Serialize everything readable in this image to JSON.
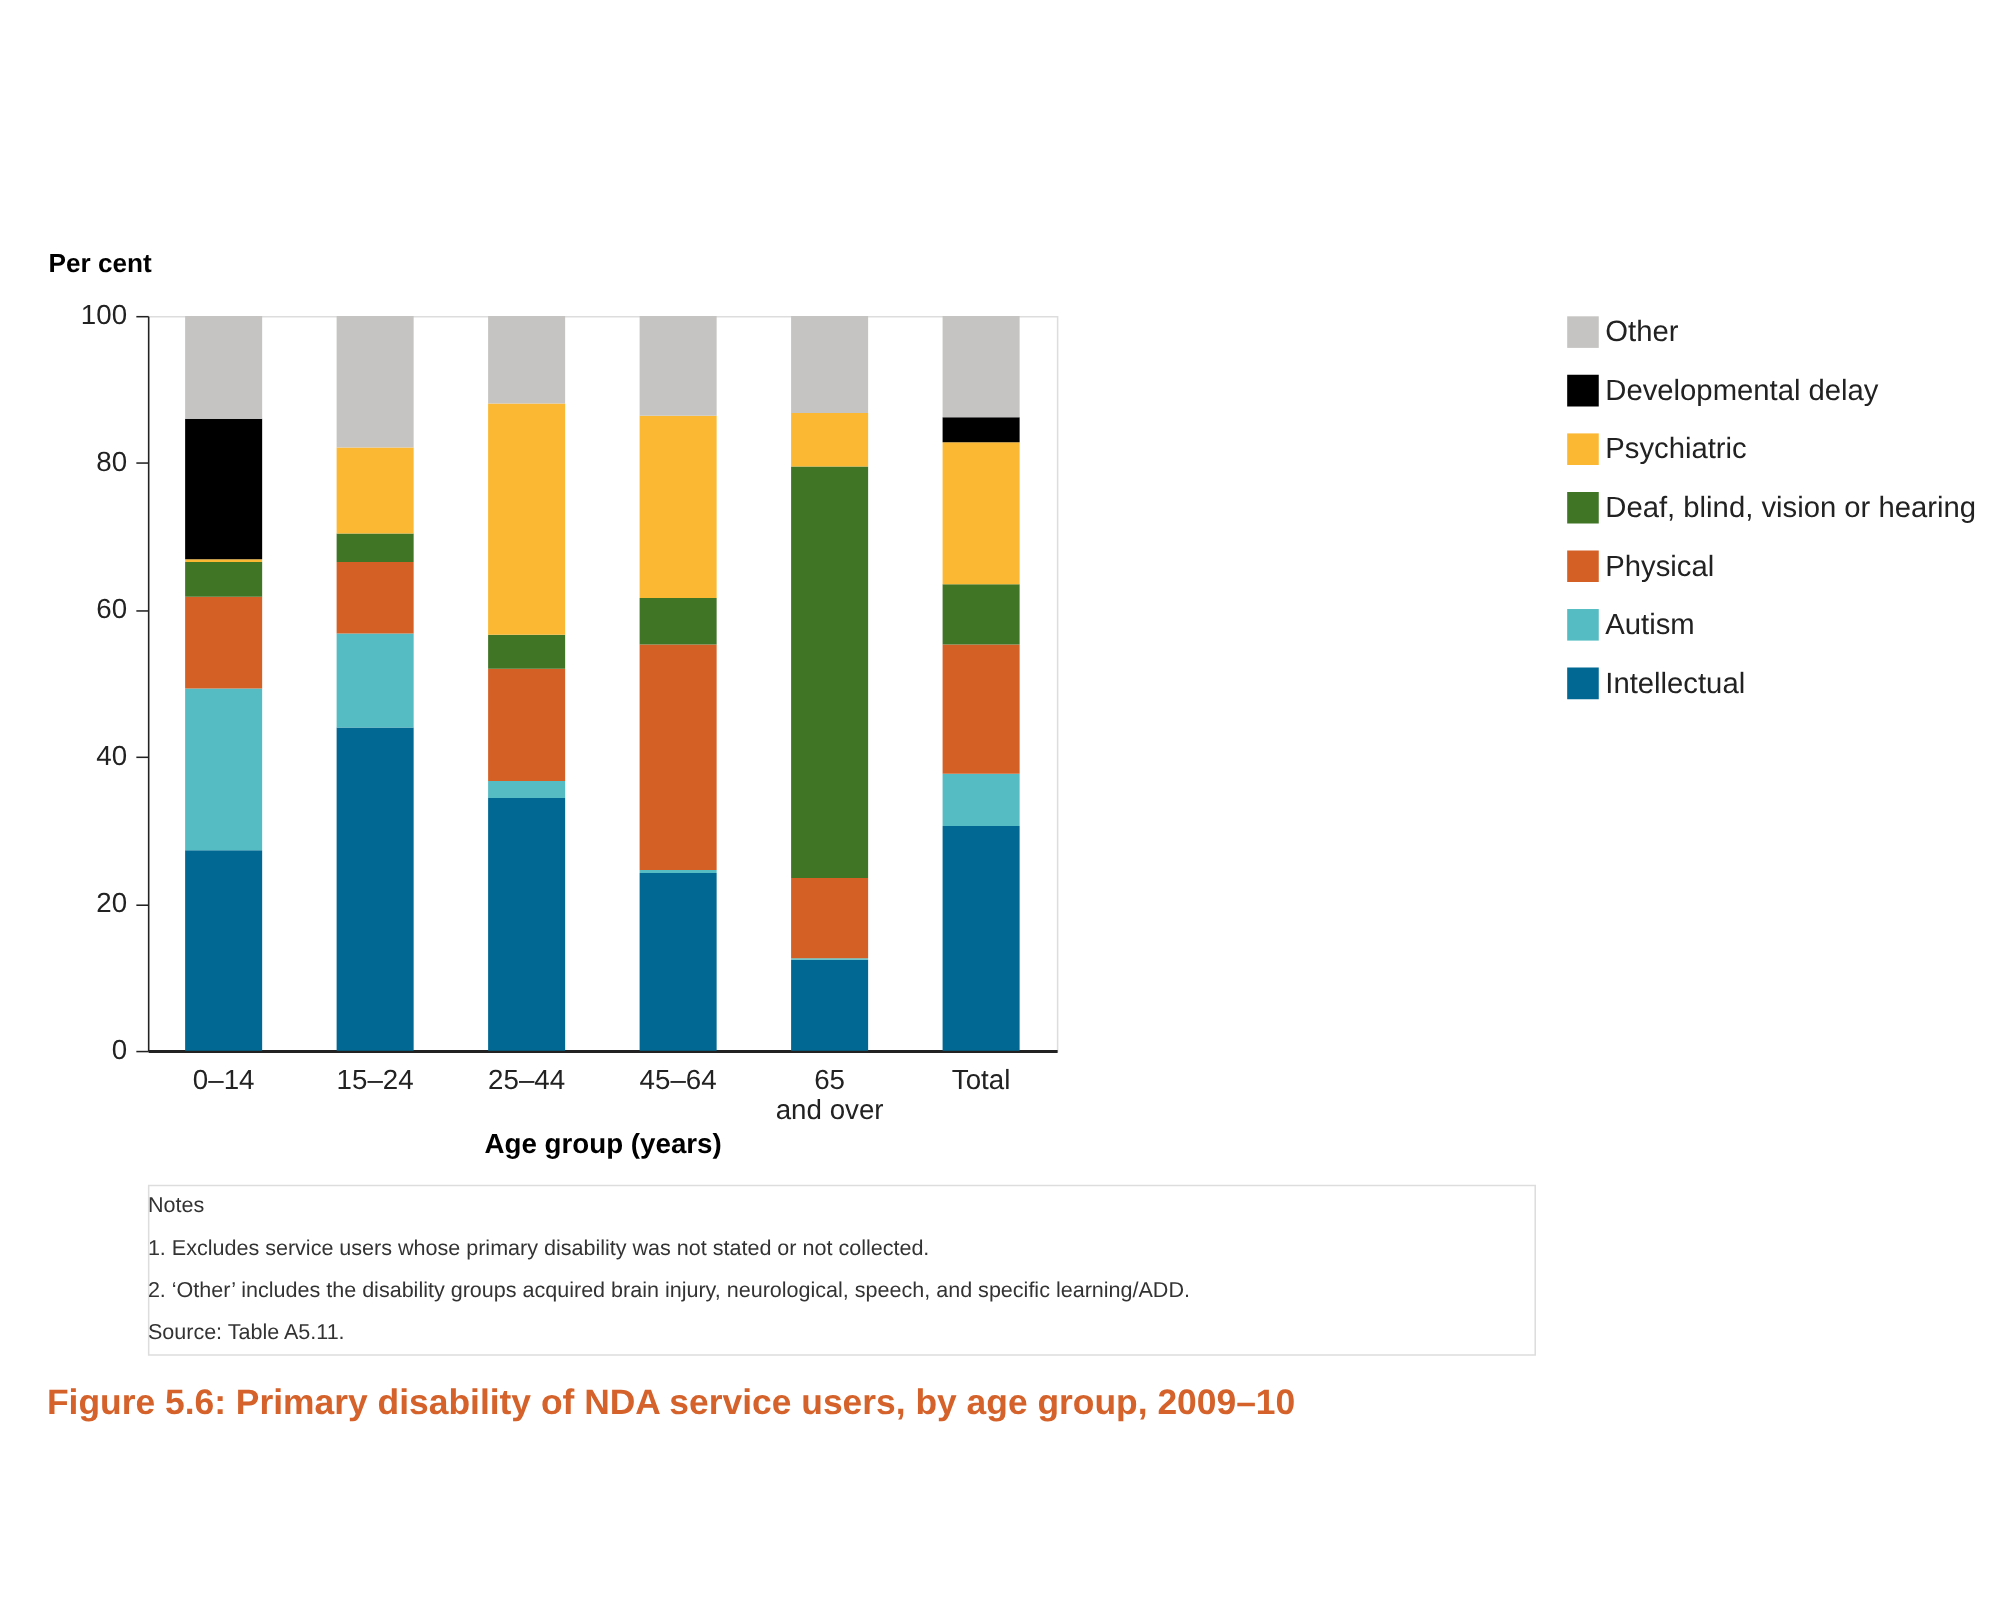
{
  "chart_data": {
    "type": "bar",
    "stacked": true,
    "title": "Figure 5.6: Primary disability of NDA service users, by age group, 2009–10",
    "ylabel": "Per cent",
    "xlabel": "Age group (years)",
    "categories": [
      "0–14",
      "15–24",
      "25–44",
      "45–64",
      "65\nand over",
      "Total"
    ],
    "series": [
      {
        "name": "Intellectual",
        "color": "#006892",
        "values": [
          27.3,
          44.0,
          34.4,
          24.2,
          12.4,
          30.6
        ]
      },
      {
        "name": "Autism",
        "color": "#54bcc2",
        "values": [
          22.0,
          12.8,
          2.3,
          0.4,
          0.2,
          7.1
        ]
      },
      {
        "name": "Physical",
        "color": "#d46026",
        "values": [
          12.5,
          9.7,
          15.3,
          30.7,
          10.9,
          17.6
        ]
      },
      {
        "name": "Deaf, blind, vision or hearing",
        "color": "#417526",
        "values": [
          4.7,
          3.9,
          4.6,
          6.3,
          56.0,
          8.2
        ]
      },
      {
        "name": "Psychiatric",
        "color": "#fbb833",
        "values": [
          0.4,
          11.7,
          31.5,
          24.8,
          7.3,
          19.3
        ]
      },
      {
        "name": "Developmental delay",
        "color": "#000000",
        "values": [
          19.1,
          0,
          0,
          0,
          0,
          3.4
        ]
      },
      {
        "name": "Other",
        "color": "#c5c4c2",
        "values": [
          14.0,
          17.9,
          11.9,
          13.6,
          13.2,
          13.8
        ]
      }
    ],
    "ylim": [
      0,
      100
    ],
    "yticks": [
      0,
      20,
      40,
      60,
      80,
      100
    ],
    "grid": false,
    "legend": "right",
    "annotations": [
      "Notes",
      "1.  Excludes service users whose primary disability was not stated or not collected.",
      "2.  ‘Other’ includes the disability groups acquired brain injury, neurological, speech, and specific learning/ADD.",
      "Source: Table A5.11."
    ]
  }
}
